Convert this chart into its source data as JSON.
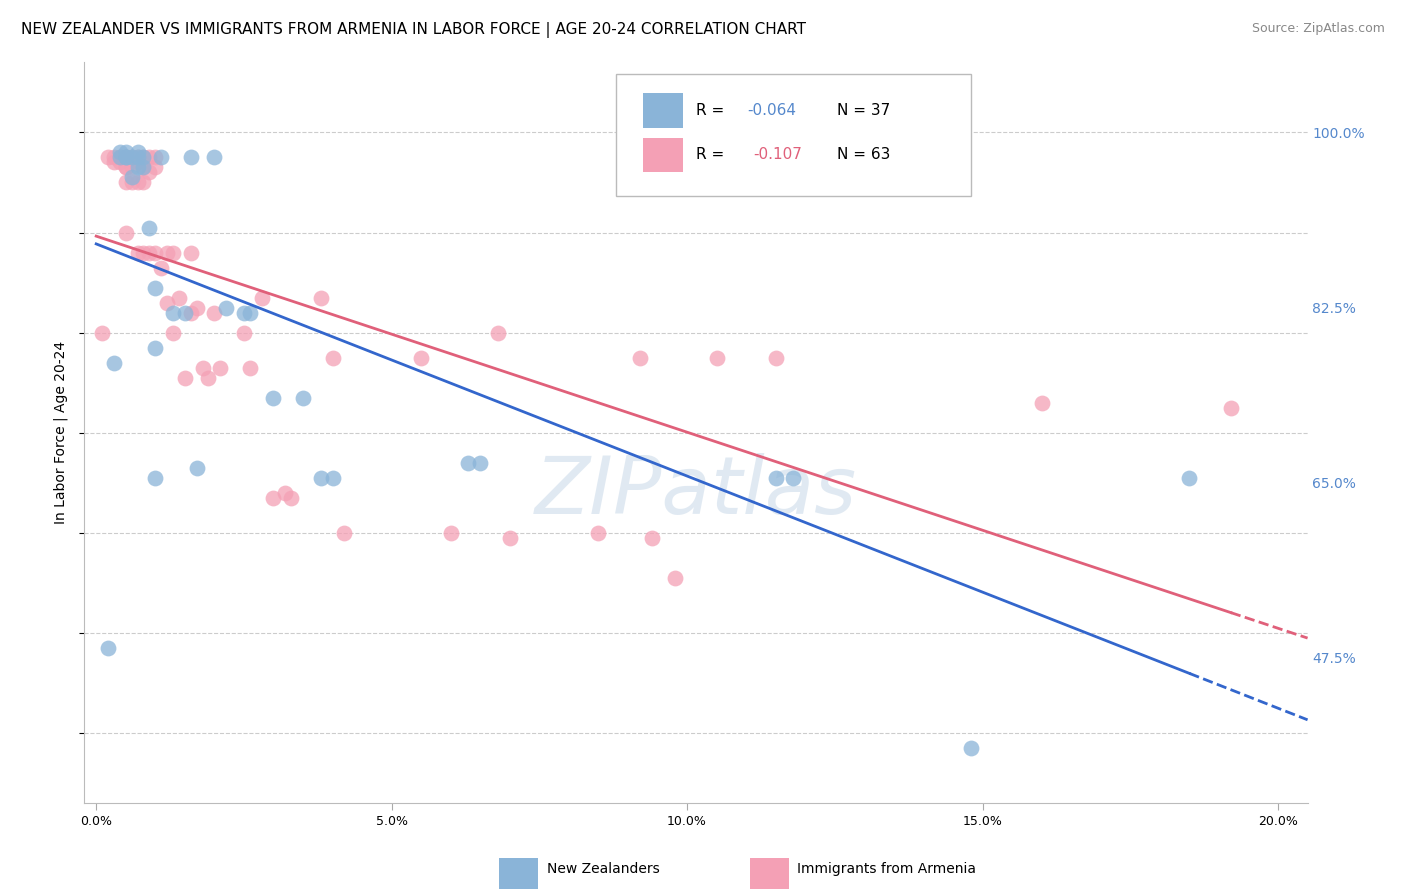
{
  "title": "NEW ZEALANDER VS IMMIGRANTS FROM ARMENIA IN LABOR FORCE | AGE 20-24 CORRELATION CHART",
  "source": "Source: ZipAtlas.com",
  "xlabel_ticks": [
    "0.0%",
    "5.0%",
    "10.0%",
    "15.0%",
    "20.0%"
  ],
  "xlabel_tick_vals": [
    0.0,
    0.05,
    0.1,
    0.15,
    0.2
  ],
  "ylabel_ticks": [
    "100.0%",
    "82.5%",
    "65.0%",
    "47.5%"
  ],
  "ylabel_tick_vals": [
    1.0,
    0.825,
    0.65,
    0.475
  ],
  "xlim": [
    -0.002,
    0.205
  ],
  "ylim": [
    0.33,
    1.07
  ],
  "ylabel": "In Labor Force | Age 20-24",
  "legend_labels": [
    "New Zealanders",
    "Immigrants from Armenia"
  ],
  "color_nz": "#8ab4d8",
  "color_arm": "#f4a0b5",
  "color_nz_line": "#3366cc",
  "color_arm_line": "#e0607a",
  "watermark_text": "ZIPatlas",
  "background_color": "#ffffff",
  "grid_color": "#cccccc",
  "ytick_color": "#5588cc",
  "title_fontsize": 11,
  "source_fontsize": 9,
  "axis_label_fontsize": 10,
  "tick_fontsize": 9,
  "nz_x": [
    0.002,
    0.003,
    0.004,
    0.004,
    0.005,
    0.005,
    0.005,
    0.006,
    0.006,
    0.007,
    0.007,
    0.007,
    0.008,
    0.008,
    0.009,
    0.01,
    0.01,
    0.011,
    0.013,
    0.015,
    0.016,
    0.017,
    0.02,
    0.022,
    0.025,
    0.026,
    0.03,
    0.035,
    0.038,
    0.04,
    0.063,
    0.065,
    0.115,
    0.118,
    0.148,
    0.185,
    0.01
  ],
  "nz_y": [
    0.485,
    0.77,
    0.975,
    0.98,
    0.975,
    0.98,
    0.975,
    0.975,
    0.955,
    0.98,
    0.975,
    0.965,
    0.975,
    0.965,
    0.905,
    0.845,
    0.785,
    0.975,
    0.82,
    0.82,
    0.975,
    0.665,
    0.975,
    0.825,
    0.82,
    0.82,
    0.735,
    0.735,
    0.655,
    0.655,
    0.67,
    0.67,
    0.655,
    0.655,
    0.385,
    0.655,
    0.655
  ],
  "arm_x": [
    0.001,
    0.002,
    0.003,
    0.003,
    0.004,
    0.004,
    0.005,
    0.005,
    0.005,
    0.005,
    0.005,
    0.006,
    0.006,
    0.006,
    0.007,
    0.007,
    0.007,
    0.007,
    0.008,
    0.008,
    0.008,
    0.008,
    0.009,
    0.009,
    0.009,
    0.01,
    0.01,
    0.01,
    0.011,
    0.012,
    0.012,
    0.013,
    0.013,
    0.014,
    0.015,
    0.016,
    0.016,
    0.017,
    0.018,
    0.019,
    0.02,
    0.021,
    0.025,
    0.026,
    0.028,
    0.03,
    0.032,
    0.033,
    0.038,
    0.04,
    0.042,
    0.055,
    0.06,
    0.068,
    0.07,
    0.085,
    0.092,
    0.094,
    0.098,
    0.105,
    0.115,
    0.16,
    0.192
  ],
  "arm_y": [
    0.8,
    0.975,
    0.975,
    0.97,
    0.975,
    0.97,
    0.975,
    0.965,
    0.965,
    0.95,
    0.9,
    0.975,
    0.965,
    0.95,
    0.975,
    0.97,
    0.95,
    0.88,
    0.975,
    0.965,
    0.95,
    0.88,
    0.975,
    0.96,
    0.88,
    0.975,
    0.965,
    0.88,
    0.865,
    0.88,
    0.83,
    0.88,
    0.8,
    0.835,
    0.755,
    0.88,
    0.82,
    0.825,
    0.765,
    0.755,
    0.82,
    0.765,
    0.8,
    0.765,
    0.835,
    0.635,
    0.64,
    0.635,
    0.835,
    0.775,
    0.6,
    0.775,
    0.6,
    0.8,
    0.595,
    0.6,
    0.775,
    0.595,
    0.555,
    0.775,
    0.775,
    0.73,
    0.725
  ],
  "r_nz": "-0.064",
  "n_nz": "37",
  "r_arm": "-0.107",
  "n_arm": "63"
}
